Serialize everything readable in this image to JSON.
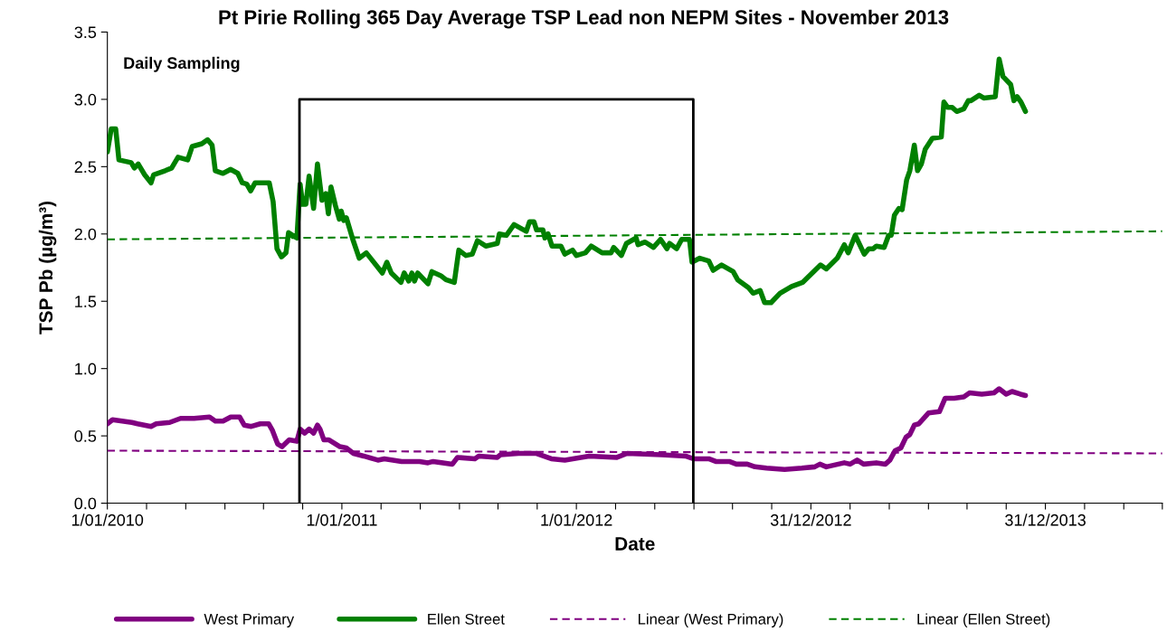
{
  "chart_data": {
    "type": "line",
    "title": "Pt Pirie Rolling 365 Day Average TSP Lead non NEPM Sites - November 2013",
    "xlabel": "Date",
    "ylabel": "TSP Pb (µg/m³)",
    "annotations": [
      "Daily Sampling"
    ],
    "xlim": [
      "2010-01-01",
      "2014-07-01"
    ],
    "xticks": [
      {
        "value": "2010-01-01",
        "label": "1/01/2010"
      },
      {
        "value": "2010-03-03",
        "label": null
      },
      {
        "value": "2010-05-03",
        "label": null
      },
      {
        "value": "2010-07-03",
        "label": null
      },
      {
        "value": "2010-09-01",
        "label": null
      },
      {
        "value": "2010-11-01",
        "label": null
      },
      {
        "value": "2011-01-01",
        "label": "1/01/2011"
      },
      {
        "value": "2011-03-03",
        "label": null
      },
      {
        "value": "2011-05-03",
        "label": null
      },
      {
        "value": "2011-07-03",
        "label": null
      },
      {
        "value": "2011-09-01",
        "label": null
      },
      {
        "value": "2011-11-01",
        "label": null
      },
      {
        "value": "2012-01-01",
        "label": "1/01/2012"
      },
      {
        "value": "2012-03-02",
        "label": null
      },
      {
        "value": "2012-05-02",
        "label": null
      },
      {
        "value": "2012-07-02",
        "label": null
      },
      {
        "value": "2012-08-31",
        "label": null
      },
      {
        "value": "2012-10-31",
        "label": null
      },
      {
        "value": "2012-12-31",
        "label": "31/12/2012"
      },
      {
        "value": "2013-03-02",
        "label": null
      },
      {
        "value": "2013-05-02",
        "label": null
      },
      {
        "value": "2013-07-02",
        "label": null
      },
      {
        "value": "2013-08-31",
        "label": null
      },
      {
        "value": "2013-10-31",
        "label": null
      },
      {
        "value": "2013-12-31",
        "label": "31/12/2013"
      },
      {
        "value": "2014-03-02",
        "label": null
      },
      {
        "value": "2014-05-02",
        "label": null
      },
      {
        "value": "2014-07-01",
        "label": null
      }
    ],
    "ylim": [
      0,
      3.5
    ],
    "yticks": [
      {
        "value": 0,
        "label": "0.0"
      },
      {
        "value": 0.5,
        "label": "0.5"
      },
      {
        "value": 1,
        "label": "1.0"
      },
      {
        "value": 1.5,
        "label": "1.5"
      },
      {
        "value": 2,
        "label": "2.0"
      },
      {
        "value": 2.5,
        "label": "2.5"
      },
      {
        "value": 3,
        "label": "3.0"
      },
      {
        "value": 3.5,
        "label": "3.5"
      }
    ],
    "grid": false,
    "legend": "bottom",
    "marker": "none",
    "series": [
      {
        "name": "West Primary",
        "color": "#800080",
        "line_style": "solid",
        "x": [
          "2010-01-01",
          "2010-01-09",
          "2010-02-08",
          "2010-02-17",
          "2010-03-10",
          "2010-03-18",
          "2010-04-08",
          "2010-04-25",
          "2010-05-16",
          "2010-06-09",
          "2010-06-18",
          "2010-06-30",
          "2010-07-12",
          "2010-07-26",
          "2010-08-02",
          "2010-08-13",
          "2010-08-27",
          "2010-09-09",
          "2010-09-15",
          "2010-09-23",
          "2010-09-30",
          "2010-10-11",
          "2010-10-23",
          "2010-10-28",
          "2010-11-04",
          "2010-11-11",
          "2010-11-18",
          "2010-11-24",
          "2010-11-28",
          "2010-12-04",
          "2010-12-12",
          "2010-12-29",
          "2011-01-08",
          "2011-01-19",
          "2011-02-04",
          "2011-02-26",
          "2011-03-08",
          "2011-04-04",
          "2011-05-02",
          "2011-05-15",
          "2011-05-23",
          "2011-06-22",
          "2011-06-30",
          "2011-07-27",
          "2011-08-02",
          "2011-08-31",
          "2011-09-05",
          "2011-10-03",
          "2011-10-18",
          "2011-10-30",
          "2011-11-23",
          "2011-12-14",
          "2012-01-21",
          "2012-03-04",
          "2012-03-20",
          "2012-05-12",
          "2012-06-19",
          "2012-07-01",
          "2012-07-25",
          "2012-08-05",
          "2012-08-26",
          "2012-09-06",
          "2012-09-23",
          "2012-10-05",
          "2012-10-23",
          "2012-11-20",
          "2012-12-17",
          "2013-01-06",
          "2013-01-14",
          "2013-01-24",
          "2013-02-21",
          "2013-03-02",
          "2013-03-13",
          "2013-03-23",
          "2013-04-12",
          "2013-04-26",
          "2013-05-03",
          "2013-05-11",
          "2013-05-20",
          "2013-05-28",
          "2013-06-03",
          "2013-06-10",
          "2013-06-17",
          "2013-07-02",
          "2013-07-19",
          "2013-07-28",
          "2013-08-11",
          "2013-08-26",
          "2013-09-04",
          "2013-09-23",
          "2013-10-12",
          "2013-10-20",
          "2013-10-31",
          "2013-11-09",
          "2013-11-22",
          "2013-11-30"
        ],
        "values": [
          0.59,
          0.62,
          0.6,
          0.59,
          0.57,
          0.59,
          0.6,
          0.63,
          0.63,
          0.64,
          0.61,
          0.61,
          0.64,
          0.64,
          0.58,
          0.57,
          0.59,
          0.59,
          0.54,
          0.44,
          0.42,
          0.47,
          0.46,
          0.55,
          0.52,
          0.55,
          0.52,
          0.58,
          0.55,
          0.47,
          0.47,
          0.42,
          0.41,
          0.37,
          0.35,
          0.32,
          0.33,
          0.31,
          0.31,
          0.3,
          0.31,
          0.29,
          0.34,
          0.33,
          0.35,
          0.34,
          0.36,
          0.37,
          0.37,
          0.37,
          0.33,
          0.32,
          0.35,
          0.34,
          0.37,
          0.36,
          0.35,
          0.33,
          0.33,
          0.31,
          0.31,
          0.29,
          0.29,
          0.27,
          0.26,
          0.25,
          0.26,
          0.27,
          0.29,
          0.27,
          0.3,
          0.29,
          0.32,
          0.29,
          0.3,
          0.29,
          0.32,
          0.39,
          0.41,
          0.49,
          0.51,
          0.58,
          0.59,
          0.67,
          0.68,
          0.78,
          0.78,
          0.79,
          0.82,
          0.81,
          0.82,
          0.85,
          0.81,
          0.83,
          0.81,
          0.8
        ]
      },
      {
        "name": "Ellen Street",
        "color": "#008000",
        "line_style": "solid",
        "x": [
          "2010-01-01",
          "2010-01-07",
          "2010-01-14",
          "2010-01-19",
          "2010-02-07",
          "2010-02-12",
          "2010-02-18",
          "2010-02-28",
          "2010-03-10",
          "2010-03-14",
          "2010-04-01",
          "2010-04-11",
          "2010-04-21",
          "2010-05-06",
          "2010-05-13",
          "2010-05-28",
          "2010-06-06",
          "2010-06-13",
          "2010-06-18",
          "2010-06-30",
          "2010-07-12",
          "2010-07-23",
          "2010-07-30",
          "2010-08-06",
          "2010-08-12",
          "2010-08-19",
          "2010-09-10",
          "2010-09-16",
          "2010-09-22",
          "2010-09-29",
          "2010-10-06",
          "2010-10-10",
          "2010-10-23",
          "2010-10-28",
          "2010-11-01",
          "2010-11-06",
          "2010-11-11",
          "2010-11-18",
          "2010-11-24",
          "2010-12-01",
          "2010-12-07",
          "2010-12-11",
          "2010-12-15",
          "2010-12-22",
          "2010-12-28",
          "2010-12-31",
          "2011-01-04",
          "2011-01-08",
          "2011-01-18",
          "2011-01-28",
          "2011-02-08",
          "2011-03-05",
          "2011-03-12",
          "2011-03-19",
          "2011-04-03",
          "2011-04-08",
          "2011-04-15",
          "2011-04-20",
          "2011-04-24",
          "2011-04-29",
          "2011-05-15",
          "2011-05-21",
          "2011-06-04",
          "2011-06-12",
          "2011-06-25",
          "2011-07-02",
          "2011-07-13",
          "2011-07-23",
          "2011-07-31",
          "2011-08-13",
          "2011-08-31",
          "2011-09-03",
          "2011-09-14",
          "2011-09-26",
          "2011-10-15",
          "2011-10-20",
          "2011-10-27",
          "2011-10-31",
          "2011-11-10",
          "2011-11-13",
          "2011-11-18",
          "2011-11-24",
          "2011-12-08",
          "2011-12-14",
          "2011-12-26",
          "2012-01-01",
          "2012-01-15",
          "2012-01-24",
          "2012-02-10",
          "2012-02-24",
          "2012-02-28",
          "2012-03-11",
          "2012-03-19",
          "2012-04-03",
          "2012-04-06",
          "2012-04-17",
          "2012-04-30",
          "2012-05-11",
          "2012-05-21",
          "2012-05-25",
          "2012-06-05",
          "2012-06-13",
          "2012-06-25",
          "2012-06-29",
          "2012-07-11",
          "2012-07-25",
          "2012-08-01",
          "2012-08-14",
          "2012-09-01",
          "2012-09-08",
          "2012-09-25",
          "2012-10-02",
          "2012-10-13",
          "2012-10-20",
          "2012-10-30",
          "2012-11-13",
          "2012-12-01",
          "2012-12-18",
          "2013-01-15",
          "2013-01-24",
          "2013-02-10",
          "2013-02-21",
          "2013-02-27",
          "2013-03-10",
          "2013-03-24",
          "2013-03-31",
          "2013-04-07",
          "2013-04-12",
          "2013-04-24",
          "2013-05-01",
          "2013-05-05",
          "2013-05-10",
          "2013-05-17",
          "2013-05-22",
          "2013-05-29",
          "2013-06-03",
          "2013-06-10",
          "2013-06-15",
          "2013-06-21",
          "2013-06-27",
          "2013-07-08",
          "2013-07-22",
          "2013-07-26",
          "2013-08-01",
          "2013-08-08",
          "2013-08-15",
          "2013-08-26",
          "2013-09-02",
          "2013-09-06",
          "2013-09-19",
          "2013-09-26",
          "2013-10-14",
          "2013-10-20",
          "2013-10-26",
          "2013-11-07",
          "2013-11-12",
          "2013-11-17",
          "2013-11-23",
          "2013-11-30"
        ],
        "values": [
          2.61,
          2.78,
          2.78,
          2.55,
          2.53,
          2.49,
          2.52,
          2.44,
          2.38,
          2.44,
          2.47,
          2.49,
          2.57,
          2.55,
          2.65,
          2.67,
          2.7,
          2.66,
          2.47,
          2.45,
          2.48,
          2.45,
          2.38,
          2.37,
          2.32,
          2.38,
          2.38,
          2.24,
          1.89,
          1.83,
          1.86,
          2.01,
          1.97,
          2.37,
          2.22,
          2.22,
          2.43,
          2.19,
          2.52,
          2.25,
          2.3,
          2.15,
          2.35,
          2.21,
          2.11,
          2.17,
          2.1,
          2.12,
          1.96,
          1.82,
          1.86,
          1.71,
          1.79,
          1.71,
          1.64,
          1.71,
          1.65,
          1.71,
          1.65,
          1.71,
          1.63,
          1.72,
          1.69,
          1.66,
          1.64,
          1.88,
          1.84,
          1.85,
          1.95,
          1.91,
          1.93,
          2.0,
          1.99,
          2.07,
          2.02,
          2.09,
          2.09,
          2.03,
          2.03,
          1.97,
          2.0,
          1.91,
          1.91,
          1.85,
          1.88,
          1.84,
          1.86,
          1.91,
          1.86,
          1.86,
          1.9,
          1.84,
          1.93,
          1.97,
          1.92,
          1.94,
          1.9,
          1.96,
          1.89,
          1.93,
          1.89,
          1.96,
          1.96,
          1.79,
          1.82,
          1.8,
          1.73,
          1.77,
          1.72,
          1.66,
          1.6,
          1.56,
          1.58,
          1.49,
          1.49,
          1.56,
          1.61,
          1.64,
          1.77,
          1.74,
          1.82,
          1.92,
          1.86,
          1.99,
          1.85,
          1.89,
          1.89,
          1.91,
          1.9,
          1.99,
          1.99,
          2.14,
          2.19,
          2.18,
          2.4,
          2.47,
          2.66,
          2.47,
          2.52,
          2.63,
          2.71,
          2.72,
          2.98,
          2.94,
          2.94,
          2.91,
          2.93,
          2.99,
          2.99,
          3.03,
          3.01,
          3.02,
          3.3,
          3.17,
          3.11,
          2.99,
          3.02,
          2.98,
          2.91
        ]
      },
      {
        "name": "Linear (West Primary)",
        "color": "#800080",
        "line_style": "dashed",
        "x": [
          "2010-01-01",
          "2014-07-01"
        ],
        "values": [
          0.39,
          0.37
        ]
      },
      {
        "name": "Linear (Ellen Street)",
        "color": "#008000",
        "line_style": "dashed",
        "x": [
          "2010-01-01",
          "2014-07-01"
        ],
        "values": [
          1.96,
          2.02
        ]
      },
      {
        "color": "#000000",
        "line_style": "solid",
        "x": [
          "2010-10-27",
          "2010-10-27",
          "2012-07-01",
          "2012-07-01"
        ],
        "values": [
          0,
          3.0,
          3.0,
          0
        ]
      }
    ]
  }
}
